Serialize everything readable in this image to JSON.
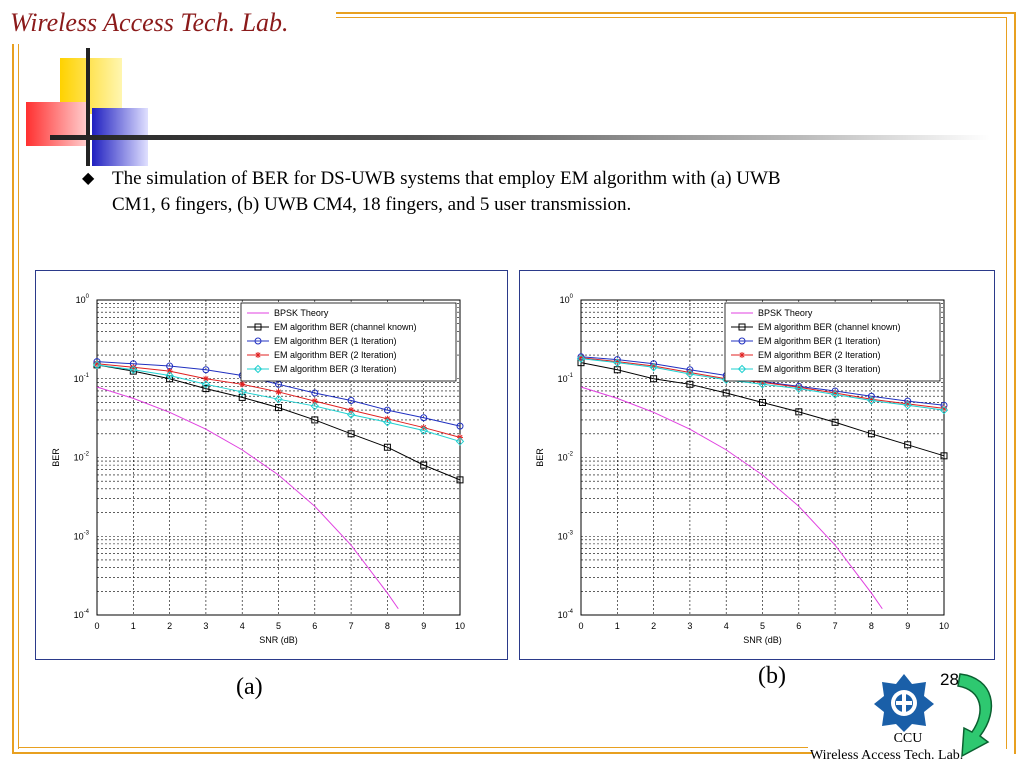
{
  "header": {
    "lab_title": "Wireless Access Tech. Lab."
  },
  "slide": {
    "bullet_icon": "diamond-bullet-icon",
    "bullet_line1": "The simulation of BER for DS-UWB systems that employ EM algorithm with (a) UWB",
    "bullet_line2": "CM1, 6 fingers, (b) UWB  CM4, 18 fingers, and 5 user transmission.",
    "caption_a": "(a)",
    "caption_b": "(b)",
    "page_number": "28"
  },
  "footer": {
    "org": "CCU",
    "lab": "Wireless Access Tech. Lab."
  },
  "colors": {
    "accent": "#e8a020",
    "title": "#8b1a1a",
    "panel_border": "#2b3a8a"
  },
  "chart_data": [
    {
      "type": "line",
      "title": "",
      "xlabel": "SNR (dB)",
      "ylabel": "BER",
      "x_ticks": [
        "0",
        "1",
        "2",
        "3",
        "4",
        "5",
        "6",
        "7",
        "8",
        "9",
        "10"
      ],
      "y_ticks": [
        "10^-4",
        "10^-3",
        "10^-2",
        "10^-1",
        "10^0"
      ],
      "xlim": [
        0,
        10
      ],
      "ylim": [
        0.0001,
        1
      ],
      "yscale": "log",
      "grid": true,
      "legend": "top-right",
      "series": [
        {
          "name": "BPSK Theory",
          "color": "#e040e0",
          "marker": "none",
          "x": [
            0,
            1,
            2,
            3,
            4,
            5,
            6,
            7,
            8,
            8.3
          ],
          "y": [
            0.0786,
            0.0563,
            0.0375,
            0.0229,
            0.0125,
            0.006,
            0.0024,
            0.00077,
            0.00019,
            0.00012
          ]
        },
        {
          "name": "EM algorithm BER (channel known)",
          "color": "#000000",
          "marker": "square",
          "x": [
            0,
            1,
            2,
            3,
            4,
            5,
            6,
            7,
            8,
            9,
            10
          ],
          "y": [
            0.15,
            0.125,
            0.1,
            0.075,
            0.058,
            0.043,
            0.03,
            0.02,
            0.0135,
            0.008,
            0.0052
          ]
        },
        {
          "name": "EM algorithm BER (1 Iteration)",
          "color": "#2030c0",
          "marker": "circle",
          "x": [
            0,
            1,
            2,
            3,
            4,
            5,
            6,
            7,
            8,
            9,
            10
          ],
          "y": [
            0.165,
            0.155,
            0.145,
            0.13,
            0.11,
            0.085,
            0.066,
            0.053,
            0.04,
            0.032,
            0.025
          ]
        },
        {
          "name": "EM algorithm BER (2 Iteration)",
          "color": "#e02020",
          "marker": "star",
          "x": [
            0,
            1,
            2,
            3,
            4,
            5,
            6,
            7,
            8,
            9,
            10
          ],
          "y": [
            0.155,
            0.14,
            0.125,
            0.1,
            0.085,
            0.068,
            0.052,
            0.04,
            0.031,
            0.024,
            0.018
          ]
        },
        {
          "name": "EM algorithm BER (3 Iteration)",
          "color": "#20d0d0",
          "marker": "diamond",
          "x": [
            0,
            1,
            2,
            3,
            4,
            5,
            6,
            7,
            8,
            9,
            10
          ],
          "y": [
            0.15,
            0.13,
            0.11,
            0.085,
            0.068,
            0.055,
            0.045,
            0.035,
            0.028,
            0.022,
            0.016
          ]
        }
      ]
    },
    {
      "type": "line",
      "title": "",
      "xlabel": "SNR (dB)",
      "ylabel": "BER",
      "x_ticks": [
        "0",
        "1",
        "2",
        "3",
        "4",
        "5",
        "6",
        "7",
        "8",
        "9",
        "10"
      ],
      "y_ticks": [
        "10^-4",
        "10^-3",
        "10^-2",
        "10^-1",
        "10^0"
      ],
      "xlim": [
        0,
        10
      ],
      "ylim": [
        0.0001,
        1
      ],
      "yscale": "log",
      "grid": true,
      "legend": "top-right",
      "series": [
        {
          "name": "BPSK Theory",
          "color": "#e040e0",
          "marker": "none",
          "x": [
            0,
            1,
            2,
            3,
            4,
            5,
            6,
            7,
            8,
            8.3
          ],
          "y": [
            0.0786,
            0.0563,
            0.0375,
            0.0229,
            0.0125,
            0.006,
            0.0024,
            0.00077,
            0.00019,
            0.00012
          ]
        },
        {
          "name": "EM algorithm BER (channel known)",
          "color": "#000000",
          "marker": "square",
          "x": [
            0,
            1,
            2,
            3,
            4,
            5,
            6,
            7,
            8,
            9,
            10
          ],
          "y": [
            0.16,
            0.13,
            0.1,
            0.085,
            0.066,
            0.05,
            0.038,
            0.028,
            0.02,
            0.0145,
            0.0105
          ]
        },
        {
          "name": "EM algorithm BER (1 Iteration)",
          "color": "#2030c0",
          "marker": "circle",
          "x": [
            0,
            1,
            2,
            3,
            4,
            5,
            6,
            7,
            8,
            9,
            10
          ],
          "y": [
            0.19,
            0.175,
            0.155,
            0.13,
            0.11,
            0.092,
            0.08,
            0.07,
            0.06,
            0.052,
            0.046
          ]
        },
        {
          "name": "EM algorithm BER (2 Iteration)",
          "color": "#e02020",
          "marker": "star",
          "x": [
            0,
            1,
            2,
            3,
            4,
            5,
            6,
            7,
            8,
            9,
            10
          ],
          "y": [
            0.185,
            0.165,
            0.145,
            0.12,
            0.1,
            0.09,
            0.078,
            0.066,
            0.055,
            0.048,
            0.042
          ]
        },
        {
          "name": "EM algorithm BER (3 Iteration)",
          "color": "#20d0d0",
          "marker": "diamond",
          "x": [
            0,
            1,
            2,
            3,
            4,
            5,
            6,
            7,
            8,
            9,
            10
          ],
          "y": [
            0.18,
            0.16,
            0.14,
            0.115,
            0.097,
            0.085,
            0.075,
            0.063,
            0.053,
            0.046,
            0.04
          ]
        }
      ]
    }
  ]
}
